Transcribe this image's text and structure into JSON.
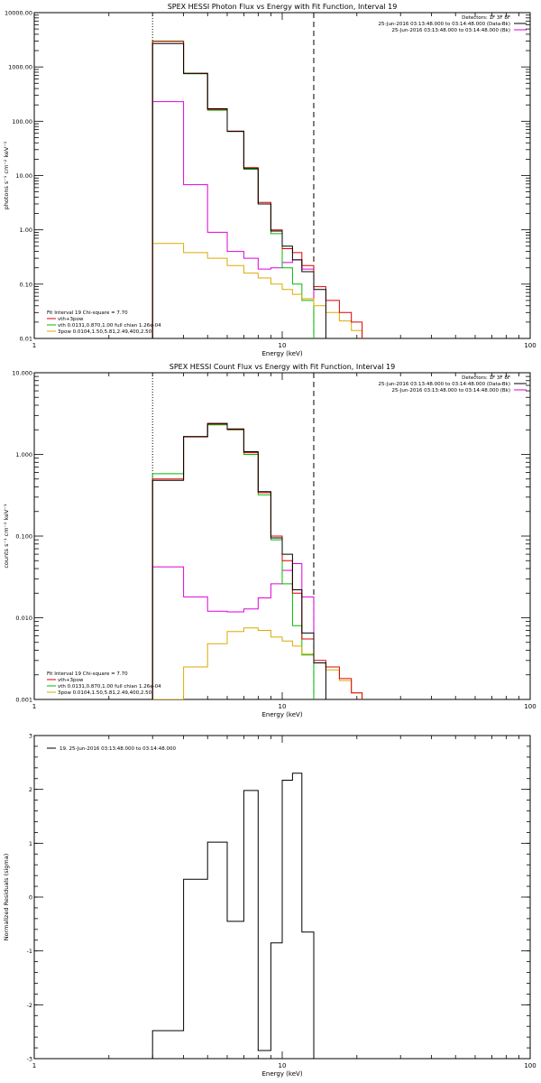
{
  "chart_data": [
    {
      "type": "line",
      "title": "SPEX HESSI Photon Flux vs Energy with Fit Function, Interval 19",
      "xlabel": "Energy (keV)",
      "ylabel": "photons s⁻¹ cm⁻² keV⁻¹",
      "x_scale": "log",
      "y_scale": "log",
      "xlim": [
        1,
        100
      ],
      "ylim": [
        0.01,
        10000
      ],
      "x_ticks": [
        1,
        10,
        100
      ],
      "x_tick_labels": [
        "1",
        "10",
        "100"
      ],
      "y_ticks": [
        0.01,
        0.1,
        1,
        10,
        100,
        1000,
        10000
      ],
      "y_tick_labels": [
        "0.01",
        "0.10",
        "1.00",
        "10.00",
        "100.00",
        "1000.00",
        "10000.00"
      ],
      "info_lines": [
        "Detectors: 1F 3F 8F",
        "25-Jun-2016 03:13:48.000 to 03:14:48.000 (Data-Bk)",
        "25-Jun-2016 03:13:48.000 to 03:14:48.000 (Bk)"
      ],
      "info_colors": [
        "#000000",
        "#000000",
        "#dd00dd"
      ],
      "vlines": [
        {
          "x": 3.0,
          "style": "dotted"
        },
        {
          "x": 13.4,
          "style": "dashed"
        }
      ],
      "legend_lines": [
        {
          "text": "Fit Interval 19   Chi-square = 7.70",
          "color": ""
        },
        {
          "text": "vth+3pow",
          "color": "#dd0000"
        },
        {
          "text": "vth 0.0131,0.870,1.00  full chian 1.26e-04",
          "color": "#00bb00"
        },
        {
          "text": "3pow 0.0104,1.50,5.81,2.49,400,2.50",
          "color": "#ddaa00"
        }
      ],
      "bin_edges": [
        3.0,
        4.0,
        5.0,
        6.0,
        7.0,
        8.0,
        9.0,
        10.0,
        11.0,
        12.0,
        13.4,
        15.0,
        17.0,
        19.0,
        21.0
      ],
      "series": [
        {
          "color": "#dd00dd",
          "values": [
            230,
            6.8,
            0.9,
            0.4,
            0.3,
            0.19,
            0.2,
            0.25,
            0.28,
            0.19
          ]
        },
        {
          "color": "#00bb00",
          "values": [
            3000,
            750,
            160,
            65,
            13,
            3.0,
            0.85,
            0.2,
            0.1,
            0.05
          ]
        },
        {
          "color": "#ddaa00",
          "values": [
            0.56,
            0.38,
            0.3,
            0.22,
            0.16,
            0.13,
            0.1,
            0.08,
            0.065,
            0.054,
            0.04,
            0.03,
            0.021,
            0.014
          ]
        },
        {
          "color": "#dd0000",
          "values": [
            2950,
            760,
            165,
            66,
            14,
            3.2,
            1.0,
            0.45,
            0.38,
            0.22,
            0.09,
            0.05,
            0.03,
            0.02
          ]
        },
        {
          "color": "#000000",
          "values": [
            2700,
            760,
            170,
            65,
            13.5,
            3.0,
            0.95,
            0.5,
            0.28,
            0.17,
            0.08
          ]
        }
      ]
    },
    {
      "type": "line",
      "title": "SPEX HESSI Count Flux vs Energy with Fit Function, Interval 19",
      "xlabel": "Energy (keV)",
      "ylabel": "counts s⁻¹ cm⁻² keV⁻¹",
      "x_scale": "log",
      "y_scale": "log",
      "xlim": [
        1,
        100
      ],
      "ylim": [
        0.001,
        10
      ],
      "x_ticks": [
        1,
        10,
        100
      ],
      "x_tick_labels": [
        "1",
        "10",
        "100"
      ],
      "y_ticks": [
        0.001,
        0.01,
        0.1,
        1,
        10
      ],
      "y_tick_labels": [
        "0.001",
        "0.010",
        "0.100",
        "1.000",
        "10.000"
      ],
      "info_lines": [
        "Detectors: 1F 3F 8F",
        "25-Jun-2016 03:13:48.000 to 03:14:48.000 (Data-Bk)",
        "25-Jun-2016 03:13:48.000 to 03:14:48.000 (Bk)"
      ],
      "info_colors": [
        "#000000",
        "#000000",
        "#dd00dd"
      ],
      "vlines": [
        {
          "x": 3.0,
          "style": "dotted"
        },
        {
          "x": 13.4,
          "style": "dashed"
        }
      ],
      "legend_lines": [
        {
          "text": "Fit Interval 19   Chi-square = 7.70",
          "color": ""
        },
        {
          "text": "vth+3pow",
          "color": "#dd0000"
        },
        {
          "text": "vth 0.0131,0.870,1.00  full chian 1.26e-04",
          "color": "#00bb00"
        },
        {
          "text": "3pow 0.0104,1.50,5.81,2.49,400,2.50",
          "color": "#ddaa00"
        }
      ],
      "bin_edges": [
        3.0,
        4.0,
        5.0,
        6.0,
        7.0,
        8.0,
        9.0,
        10.0,
        11.0,
        12.0,
        13.4,
        15.0,
        17.0,
        19.0,
        21.0
      ],
      "series": [
        {
          "color": "#dd00dd",
          "values": [
            0.042,
            0.018,
            0.012,
            0.0118,
            0.0128,
            0.0175,
            0.026,
            0.038,
            0.046,
            0.018
          ]
        },
        {
          "color": "#00bb00",
          "values": [
            0.58,
            1.65,
            2.3,
            2.0,
            1.0,
            0.32,
            0.09,
            0.026,
            0.008,
            0.0035
          ]
        },
        {
          "color": "#ddaa00",
          "values": [
            0.0008,
            0.0025,
            0.0048,
            0.0068,
            0.0075,
            0.007,
            0.0058,
            0.0052,
            0.0045,
            0.0036,
            0.0028,
            0.0023,
            0.0017,
            0.0012
          ]
        },
        {
          "color": "#dd0000",
          "values": [
            0.5,
            1.64,
            2.35,
            2.02,
            1.05,
            0.34,
            0.1,
            0.05,
            0.02,
            0.0055,
            0.003,
            0.0025,
            0.0018,
            0.0012
          ]
        },
        {
          "color": "#000000",
          "values": [
            0.48,
            1.65,
            2.4,
            2.05,
            1.08,
            0.35,
            0.095,
            0.06,
            0.022,
            0.0065,
            0.0028
          ]
        }
      ]
    },
    {
      "type": "line",
      "title": "",
      "xlabel": "Energy (keV)",
      "ylabel": "Normalized Residuals (sigma)",
      "x_scale": "log",
      "y_scale": "linear",
      "xlim": [
        1,
        100
      ],
      "ylim": [
        -3,
        3
      ],
      "x_ticks": [
        1,
        10,
        100
      ],
      "x_tick_labels": [
        "1",
        "10",
        "100"
      ],
      "y_ticks": [
        -3,
        -2,
        -1,
        0,
        1,
        2,
        3
      ],
      "y_tick_labels": [
        "-3",
        "-2",
        "-1",
        "0",
        "1",
        "2",
        "3"
      ],
      "legend_lines": [
        {
          "text": "19. 25-Jun-2016 03:13:48.000 to 03:14:48.000",
          "color": "#000000"
        }
      ],
      "bin_edges": [
        3.0,
        4.0,
        5.0,
        6.0,
        7.0,
        8.0,
        9.0,
        10.0,
        11.0,
        12.0,
        13.4
      ],
      "series": [
        {
          "color": "#000000",
          "values": [
            -2.48,
            0.33,
            1.02,
            -0.45,
            1.98,
            -2.85,
            -0.85,
            2.17,
            2.3,
            -0.65
          ]
        }
      ]
    }
  ]
}
